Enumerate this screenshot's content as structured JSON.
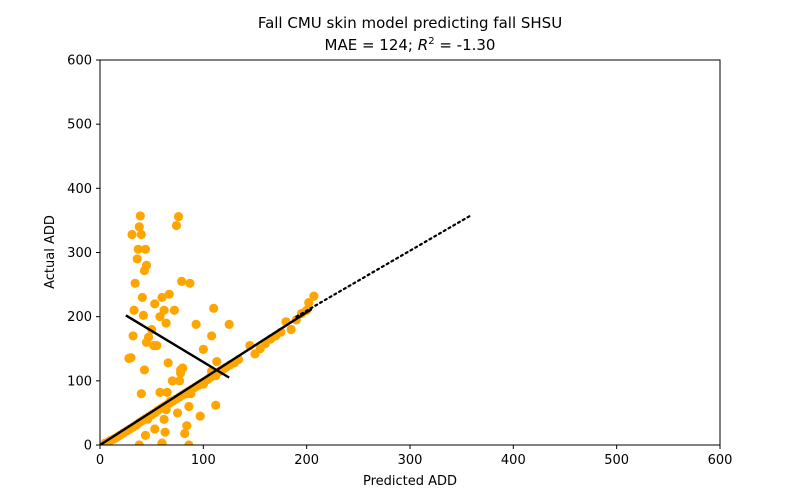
{
  "chart_data": {
    "type": "scatter",
    "title": "Fall CMU skin model predicting fall SHSU",
    "subtitle_prefix": "MAE = 124; ",
    "subtitle_r": "R",
    "subtitle_exp": "2",
    "subtitle_suffix": " = -1.30",
    "xlabel": "Predicted ADD",
    "ylabel": "Actual ADD",
    "xlim": [
      0,
      600
    ],
    "ylim": [
      0,
      600
    ],
    "xticks": [
      "0",
      "100",
      "200",
      "300",
      "400",
      "500",
      "600"
    ],
    "yticks": [
      "0",
      "100",
      "200",
      "300",
      "400",
      "500",
      "600"
    ],
    "grid": false,
    "point_color": "#FFA500",
    "line_color": "#000000",
    "points": [
      [
        5,
        3
      ],
      [
        8,
        5
      ],
      [
        10,
        7
      ],
      [
        13,
        9
      ],
      [
        15,
        11
      ],
      [
        18,
        14
      ],
      [
        20,
        16
      ],
      [
        23,
        19
      ],
      [
        26,
        22
      ],
      [
        29,
        25
      ],
      [
        32,
        28
      ],
      [
        35,
        31
      ],
      [
        38,
        35
      ],
      [
        41,
        38
      ],
      [
        44,
        41
      ],
      [
        47,
        44
      ],
      [
        50,
        47
      ],
      [
        53,
        50
      ],
      [
        56,
        54
      ],
      [
        59,
        57
      ],
      [
        62,
        60
      ],
      [
        65,
        63
      ],
      [
        68,
        66
      ],
      [
        71,
        69
      ],
      [
        74,
        72
      ],
      [
        77,
        75
      ],
      [
        80,
        78
      ],
      [
        83,
        81
      ],
      [
        86,
        84
      ],
      [
        89,
        87
      ],
      [
        92,
        90
      ],
      [
        95,
        93
      ],
      [
        98,
        96
      ],
      [
        101,
        99
      ],
      [
        104,
        102
      ],
      [
        107,
        106
      ],
      [
        110,
        109
      ],
      [
        113,
        112
      ],
      [
        116,
        115
      ],
      [
        119,
        118
      ],
      [
        122,
        121
      ],
      [
        126,
        125
      ],
      [
        130,
        128
      ],
      [
        134,
        133
      ],
      [
        145,
        155
      ],
      [
        150,
        142
      ],
      [
        155,
        150
      ],
      [
        160,
        158
      ],
      [
        165,
        165
      ],
      [
        170,
        170
      ],
      [
        175,
        176
      ],
      [
        180,
        192
      ],
      [
        185,
        180
      ],
      [
        190,
        195
      ],
      [
        195,
        205
      ],
      [
        200,
        210
      ],
      [
        202,
        222
      ],
      [
        207,
        232
      ],
      [
        28,
        135
      ],
      [
        30,
        136
      ],
      [
        32,
        170
      ],
      [
        31,
        328
      ],
      [
        33,
        210
      ],
      [
        34,
        252
      ],
      [
        36,
        290
      ],
      [
        37,
        305
      ],
      [
        38,
        340
      ],
      [
        39,
        357
      ],
      [
        40,
        328
      ],
      [
        41,
        230
      ],
      [
        42,
        202
      ],
      [
        43,
        272
      ],
      [
        44,
        305
      ],
      [
        45,
        280
      ],
      [
        45,
        160
      ],
      [
        47,
        168
      ],
      [
        50,
        180
      ],
      [
        52,
        155
      ],
      [
        53,
        220
      ],
      [
        55,
        155
      ],
      [
        58,
        200
      ],
      [
        60,
        230
      ],
      [
        62,
        210
      ],
      [
        64,
        190
      ],
      [
        66,
        128
      ],
      [
        67,
        235
      ],
      [
        72,
        210
      ],
      [
        74,
        342
      ],
      [
        76,
        356
      ],
      [
        78,
        117
      ],
      [
        79,
        255
      ],
      [
        85,
        80
      ],
      [
        87,
        252
      ],
      [
        93,
        188
      ],
      [
        100,
        149
      ],
      [
        108,
        170
      ],
      [
        110,
        213
      ],
      [
        125,
        188
      ],
      [
        38,
        0
      ],
      [
        40,
        80
      ],
      [
        43,
        117
      ],
      [
        44,
        15
      ],
      [
        46,
        40
      ],
      [
        53,
        25
      ],
      [
        58,
        82
      ],
      [
        60,
        3
      ],
      [
        62,
        40
      ],
      [
        63,
        20
      ],
      [
        64,
        55
      ],
      [
        65,
        82
      ],
      [
        68,
        68
      ],
      [
        70,
        100
      ],
      [
        75,
        50
      ],
      [
        77,
        100
      ],
      [
        78,
        112
      ],
      [
        80,
        120
      ],
      [
        82,
        18
      ],
      [
        84,
        30
      ],
      [
        86,
        60
      ],
      [
        86,
        0
      ],
      [
        88,
        80
      ],
      [
        97,
        45
      ],
      [
        100,
        95
      ],
      [
        108,
        115
      ],
      [
        112,
        62
      ],
      [
        112,
        108
      ],
      [
        113,
        130
      ]
    ],
    "fit_line": [
      [
        25,
        202
      ],
      [
        125,
        105
      ]
    ],
    "identity_line": [
      [
        0,
        0
      ],
      [
        205,
        212
      ]
    ],
    "dotted_line": [
      [
        190,
        200
      ],
      [
        358,
        357
      ]
    ]
  }
}
